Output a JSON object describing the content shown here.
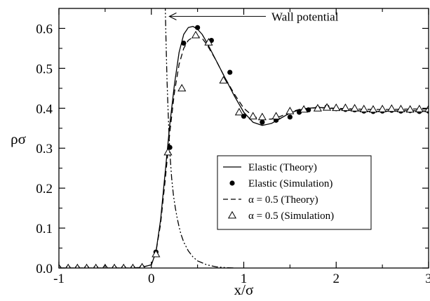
{
  "chart_data": {
    "type": "line",
    "title": "",
    "xlabel": "x/σ",
    "ylabel": "ρσ",
    "xlim": [
      -1,
      3
    ],
    "ylim": [
      0,
      0.65
    ],
    "xticks": [
      -1,
      0,
      1,
      2,
      3
    ],
    "xtick_labels": [
      "-1",
      "0",
      "1",
      "2",
      "3"
    ],
    "yticks": [
      0,
      0.1,
      0.2,
      0.3,
      0.4,
      0.5,
      0.6
    ],
    "ytick_labels": [
      "0.0",
      "0.1",
      "0.2",
      "0.3",
      "0.4",
      "0.5",
      "0.6"
    ],
    "grid": false,
    "legend_position": "center-right",
    "series": [
      {
        "name": "Elastic  (Theory)",
        "style": "solid-line",
        "color": "#000000",
        "x": [
          -1.0,
          -0.2,
          -0.1,
          0.0,
          0.05,
          0.1,
          0.15,
          0.2,
          0.25,
          0.3,
          0.35,
          0.4,
          0.45,
          0.5,
          0.55,
          0.6,
          0.7,
          0.8,
          0.9,
          1.0,
          1.1,
          1.2,
          1.3,
          1.4,
          1.5,
          1.6,
          1.7,
          1.8,
          1.9,
          2.0,
          2.2,
          2.4,
          2.6,
          2.8,
          3.0
        ],
        "y": [
          0.0,
          0.0,
          0.002,
          0.008,
          0.04,
          0.12,
          0.24,
          0.36,
          0.46,
          0.54,
          0.585,
          0.602,
          0.605,
          0.598,
          0.585,
          0.565,
          0.52,
          0.475,
          0.43,
          0.39,
          0.365,
          0.357,
          0.362,
          0.375,
          0.388,
          0.396,
          0.4,
          0.402,
          0.401,
          0.398,
          0.394,
          0.392,
          0.393,
          0.394,
          0.393
        ]
      },
      {
        "name": "Elastic  (Simulation)",
        "style": "filled-circle",
        "color": "#000000",
        "x": [
          -1.0,
          -0.9,
          -0.8,
          -0.7,
          -0.6,
          -0.5,
          -0.4,
          -0.3,
          -0.2,
          -0.1,
          0.05,
          0.2,
          0.35,
          0.5,
          0.65,
          0.85,
          1.0,
          1.2,
          1.35,
          1.5,
          1.6,
          1.7,
          1.8,
          1.9,
          2.0,
          2.1,
          2.2,
          2.3,
          2.4,
          2.5,
          2.6,
          2.7,
          2.8,
          2.9,
          3.0
        ],
        "y": [
          0.0,
          0.0,
          0.0,
          0.0,
          0.0,
          0.0,
          0.0,
          0.0,
          0.0,
          0.002,
          0.04,
          0.302,
          0.563,
          0.602,
          0.57,
          0.49,
          0.38,
          0.365,
          0.37,
          0.378,
          0.39,
          0.396,
          0.4,
          0.403,
          0.399,
          0.397,
          0.396,
          0.393,
          0.392,
          0.393,
          0.395,
          0.393,
          0.394,
          0.392,
          0.393
        ]
      },
      {
        "name": "α = 0.5 (Theory)",
        "style": "dashed-line",
        "color": "#000000",
        "x": [
          -1.0,
          -0.2,
          -0.1,
          0.0,
          0.05,
          0.1,
          0.15,
          0.2,
          0.25,
          0.3,
          0.35,
          0.4,
          0.45,
          0.5,
          0.55,
          0.6,
          0.7,
          0.8,
          0.9,
          1.0,
          1.1,
          1.2,
          1.3,
          1.4,
          1.5,
          1.6,
          1.7,
          1.8,
          1.9,
          2.0,
          2.2,
          2.4,
          2.6,
          2.8,
          3.0
        ],
        "y": [
          0.0,
          0.0,
          0.002,
          0.008,
          0.04,
          0.11,
          0.22,
          0.34,
          0.44,
          0.51,
          0.55,
          0.57,
          0.578,
          0.58,
          0.575,
          0.56,
          0.52,
          0.475,
          0.435,
          0.4,
          0.38,
          0.372,
          0.373,
          0.38,
          0.39,
          0.397,
          0.4,
          0.401,
          0.401,
          0.4,
          0.398,
          0.397,
          0.397,
          0.398,
          0.398
        ]
      },
      {
        "name": "α = 0.5 (Simulation)",
        "style": "open-triangle",
        "color": "#000000",
        "x": [
          -1.0,
          -0.9,
          -0.8,
          -0.7,
          -0.6,
          -0.5,
          -0.4,
          -0.3,
          -0.2,
          -0.1,
          0.05,
          0.18,
          0.33,
          0.48,
          0.62,
          0.78,
          0.95,
          1.1,
          1.2,
          1.35,
          1.5,
          1.65,
          1.8,
          1.9,
          2.0,
          2.1,
          2.2,
          2.3,
          2.4,
          2.5,
          2.6,
          2.7,
          2.8,
          2.9,
          3.0
        ],
        "y": [
          0.0,
          0.0,
          0.0,
          0.0,
          0.0,
          0.0,
          0.0,
          0.0,
          0.0,
          0.002,
          0.035,
          0.29,
          0.45,
          0.583,
          0.565,
          0.47,
          0.39,
          0.38,
          0.378,
          0.38,
          0.393,
          0.397,
          0.4,
          0.402,
          0.401,
          0.401,
          0.4,
          0.398,
          0.397,
          0.398,
          0.399,
          0.398,
          0.397,
          0.398,
          0.398
        ]
      },
      {
        "name": "Wall potential",
        "style": "dash-dot-dot",
        "color": "#000000",
        "x": [
          0.15,
          0.16,
          0.17,
          0.18,
          0.19,
          0.2,
          0.22,
          0.24,
          0.26,
          0.28,
          0.3,
          0.32,
          0.35,
          0.4,
          0.45,
          0.5,
          0.6,
          0.7,
          0.8,
          0.9
        ],
        "y": [
          0.66,
          0.56,
          0.47,
          0.4,
          0.34,
          0.29,
          0.225,
          0.18,
          0.15,
          0.125,
          0.103,
          0.085,
          0.065,
          0.043,
          0.028,
          0.018,
          0.008,
          0.003,
          0.001,
          0.0
        ]
      }
    ],
    "annotations": [
      {
        "text": "Wall potential",
        "x": 1.3,
        "y": 0.63,
        "arrow_to": [
          0.18,
          0.63
        ]
      }
    ]
  }
}
